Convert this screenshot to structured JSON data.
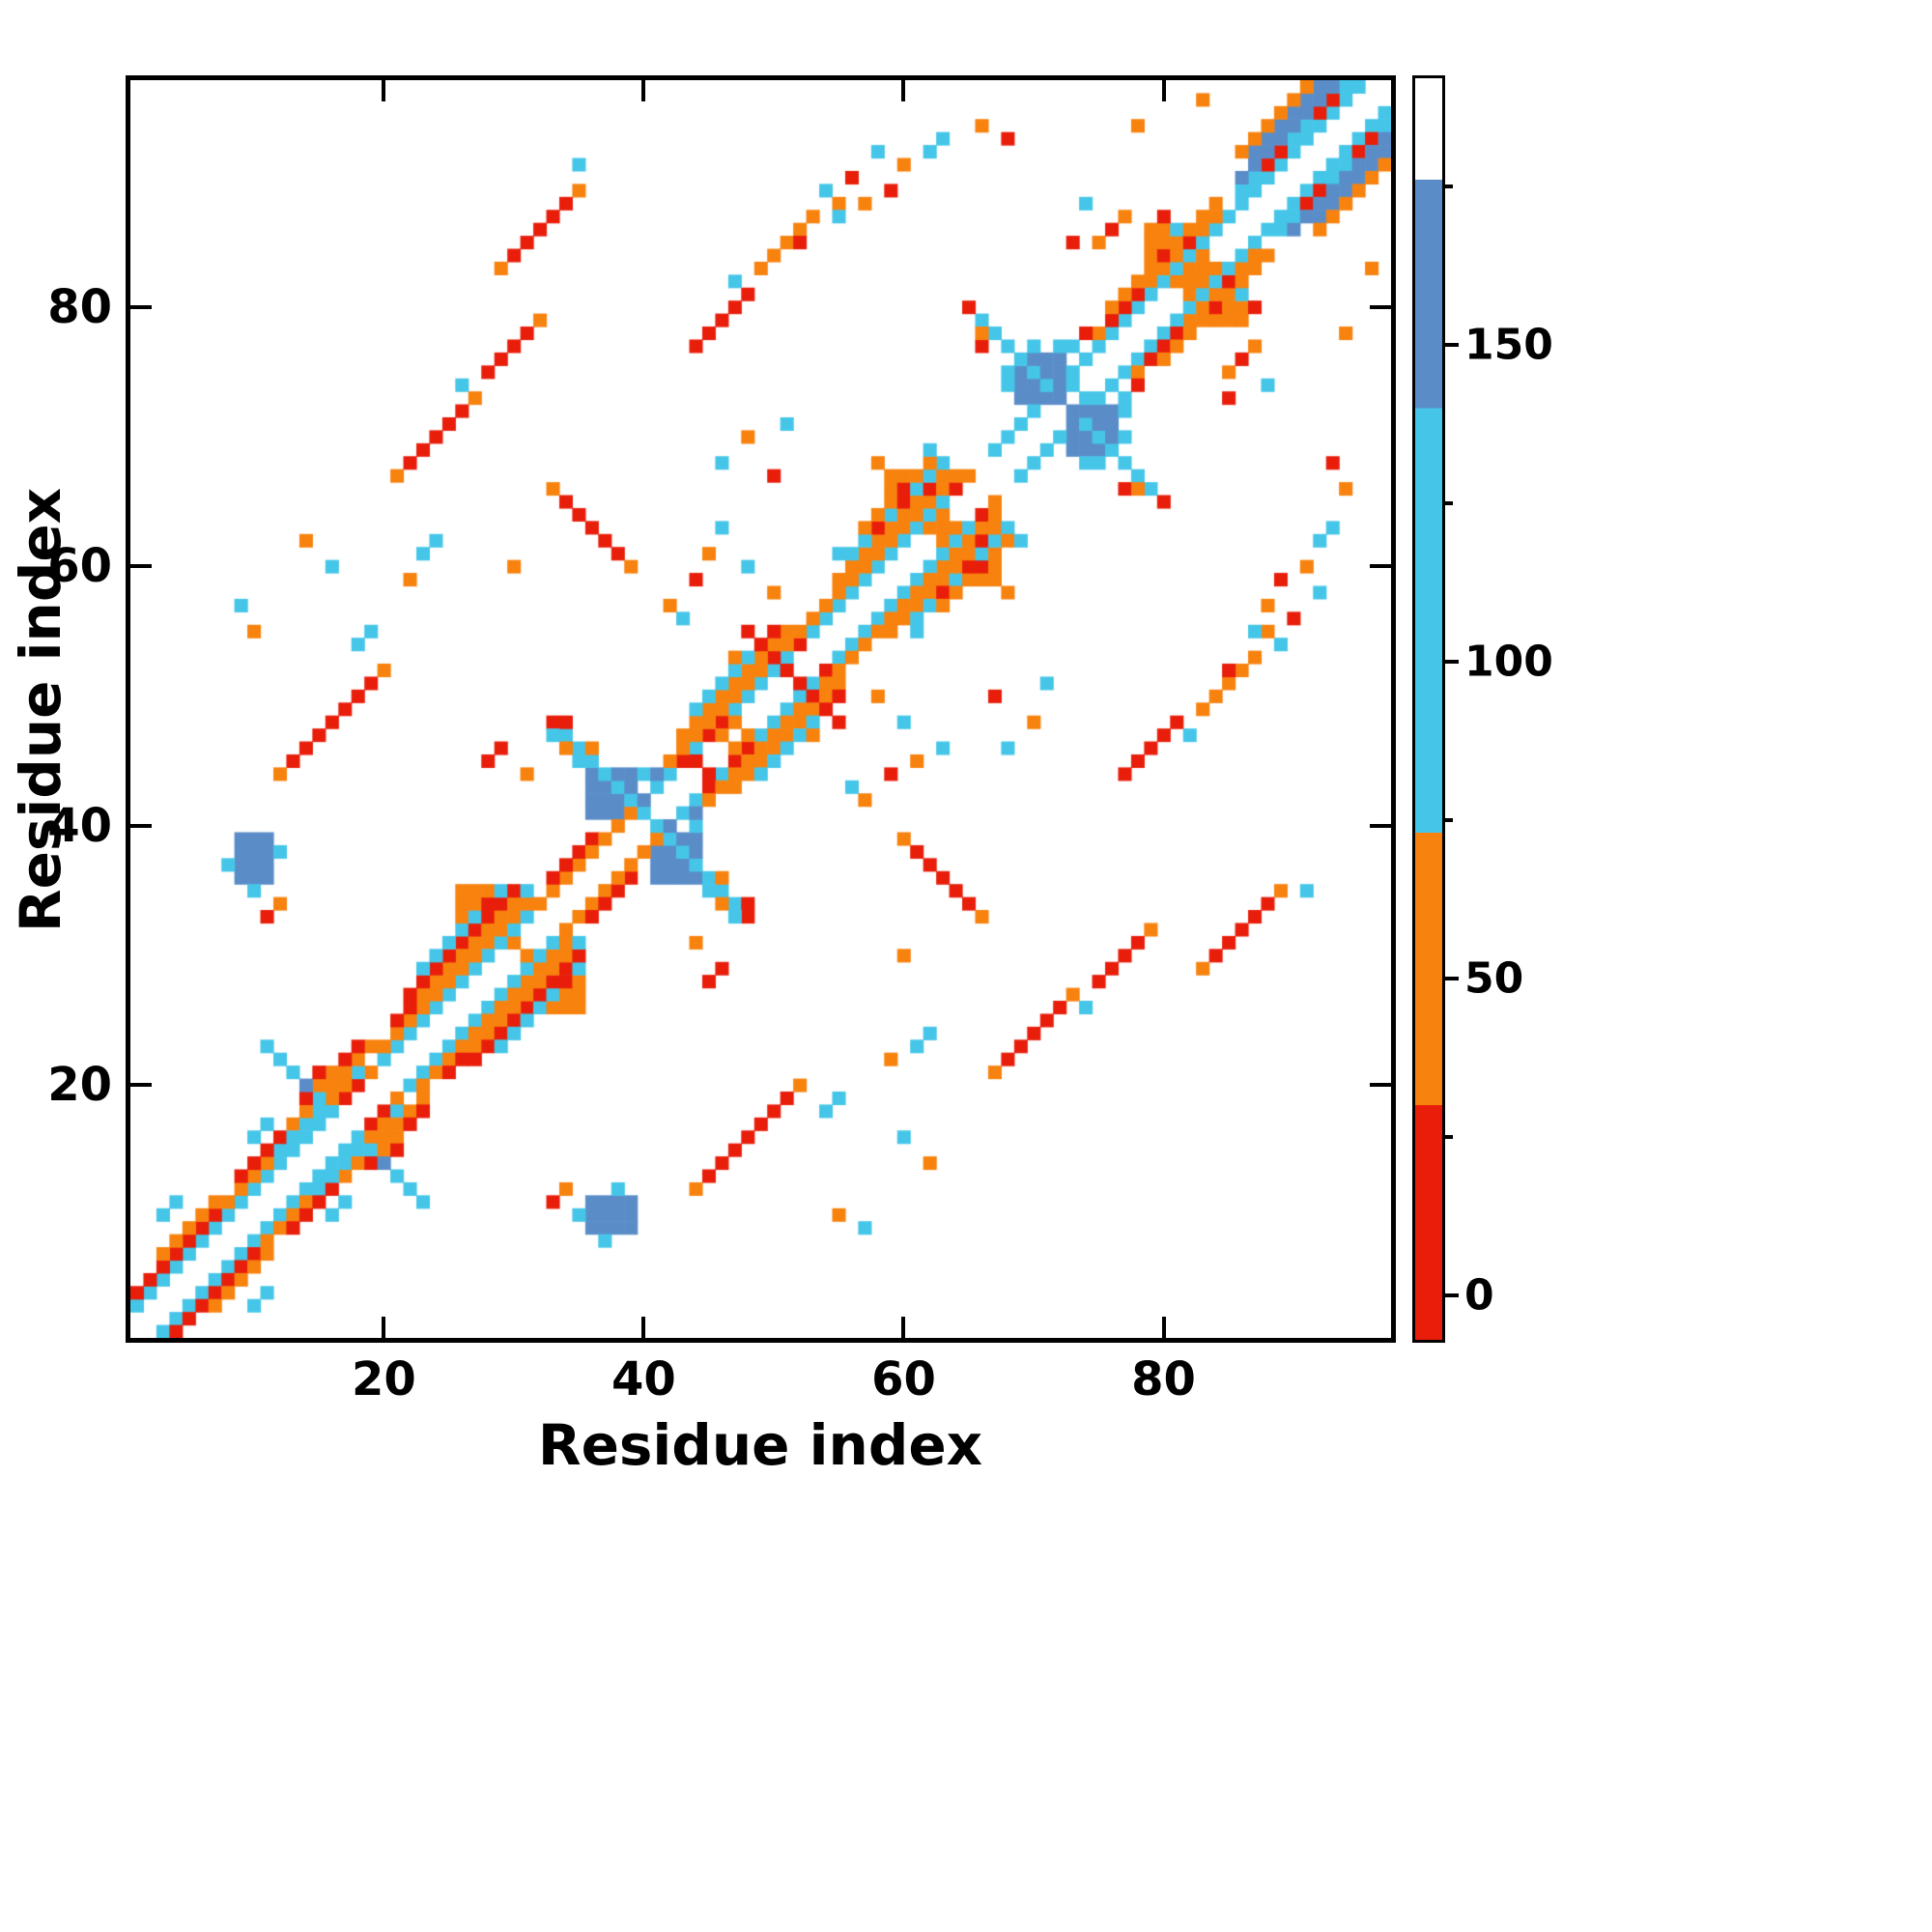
{
  "chart_data": {
    "type": "heatmap",
    "title": "",
    "xlabel": "Residue index",
    "ylabel": "Residue index",
    "x_ticks": [
      20,
      40,
      60,
      80
    ],
    "y_ticks": [
      20,
      40,
      60,
      80
    ],
    "x_range": [
      1,
      97
    ],
    "y_range": [
      1,
      97
    ],
    "n_residues": 97,
    "symmetric": true,
    "grid": false,
    "background": "#ffffff",
    "palette": {
      "r": "#e81e0b",
      "o": "#f8820e",
      "c": "#45c6e8",
      "b": "#5a8dc8",
      "w": "#ffffff"
    },
    "value_bins": {
      "r": 15,
      "o": 50,
      "c": 105,
      "b": 158
    },
    "rects": [
      [
        9,
        11,
        36,
        39,
        "b"
      ],
      [
        26,
        30,
        31,
        35,
        "o"
      ],
      [
        36,
        39,
        41,
        44,
        "b"
      ],
      [
        59,
        63,
        63,
        67,
        "o"
      ],
      [
        69,
        72,
        73,
        76,
        "b"
      ],
      [
        79,
        83,
        82,
        86,
        "o"
      ]
    ],
    "diagonals": [
      [
        1,
        8,
        2,
        "c"
      ],
      [
        1,
        7,
        3,
        "r"
      ],
      [
        3,
        7,
        4,
        "o"
      ],
      [
        8,
        19,
        2,
        "c"
      ],
      [
        8,
        12,
        3,
        "o"
      ],
      [
        9,
        13,
        4,
        "r"
      ],
      [
        12,
        18,
        3,
        "c"
      ],
      [
        13,
        19,
        4,
        "o"
      ],
      [
        14,
        18,
        5,
        "r"
      ],
      [
        20,
        32,
        2,
        "c"
      ],
      [
        20,
        31,
        3,
        "o"
      ],
      [
        21,
        31,
        4,
        "o"
      ],
      [
        22,
        30,
        5,
        "r"
      ],
      [
        23,
        29,
        6,
        "c"
      ],
      [
        32,
        35,
        2,
        "o"
      ],
      [
        33,
        36,
        3,
        "r"
      ],
      [
        35,
        39,
        2,
        "o"
      ],
      [
        41,
        52,
        2,
        "c"
      ],
      [
        42,
        51,
        3,
        "o"
      ],
      [
        43,
        51,
        4,
        "o"
      ],
      [
        44,
        50,
        5,
        "c"
      ],
      [
        53,
        64,
        2,
        "c"
      ],
      [
        54,
        64,
        3,
        "o"
      ],
      [
        55,
        63,
        4,
        "o"
      ],
      [
        56,
        63,
        5,
        "c"
      ],
      [
        57,
        62,
        6,
        "o"
      ],
      [
        67,
        74,
        2,
        "c"
      ],
      [
        74,
        85,
        2,
        "c"
      ],
      [
        75,
        84,
        3,
        "o"
      ],
      [
        76,
        84,
        4,
        "o"
      ],
      [
        85,
        95,
        2,
        "c"
      ],
      [
        86,
        94,
        3,
        "c"
      ],
      [
        86,
        93,
        4,
        "b"
      ],
      [
        87,
        92,
        5,
        "b"
      ],
      [
        87,
        91,
        6,
        "o"
      ],
      [
        13,
        19,
        32,
        "r"
      ],
      [
        22,
        26,
        46,
        "r"
      ],
      [
        28,
        31,
        47,
        "r"
      ],
      [
        30,
        34,
        54,
        "r"
      ],
      [
        44,
        48,
        33,
        "r"
      ],
      [
        49,
        53,
        34,
        "o"
      ],
      [
        66,
        67,
        11,
        "r"
      ]
    ],
    "antidiagonals": [
      [
        13,
        21,
        4,
        "c"
      ],
      [
        34,
        47,
        7,
        "c"
      ],
      [
        48,
        55,
        4,
        "r"
      ],
      [
        66,
        79,
        6,
        "c"
      ],
      [
        34,
        65,
        5,
        "r"
      ]
    ],
    "points": [
      [
        15,
        20,
        "o"
      ],
      [
        16,
        19,
        "o"
      ],
      [
        16,
        21,
        "o"
      ],
      [
        17,
        20,
        "o"
      ],
      [
        15,
        21,
        "r"
      ],
      [
        14,
        20,
        "b"
      ],
      [
        11,
        23,
        "c"
      ],
      [
        12,
        22,
        "c"
      ],
      [
        17,
        19,
        "r"
      ],
      [
        18,
        20,
        "r"
      ],
      [
        19,
        21,
        "o"
      ],
      [
        10,
        16,
        "c"
      ],
      [
        11,
        17,
        "c"
      ],
      [
        3,
        10,
        "c"
      ],
      [
        4,
        11,
        "c"
      ],
      [
        21,
        25,
        "r"
      ],
      [
        22,
        26,
        "r"
      ],
      [
        27,
        32,
        "r"
      ],
      [
        28,
        34,
        "r"
      ],
      [
        30,
        35,
        "r"
      ],
      [
        25,
        31,
        "c"
      ],
      [
        31,
        35,
        "c"
      ],
      [
        35,
        45,
        "c"
      ],
      [
        40,
        44,
        "c"
      ],
      [
        41,
        43,
        "c"
      ],
      [
        34,
        48,
        "r"
      ],
      [
        44,
        45,
        "r"
      ],
      [
        36,
        46,
        "o"
      ],
      [
        33,
        48,
        "r"
      ],
      [
        34,
        46,
        "o"
      ],
      [
        37,
        42,
        "b"
      ],
      [
        38,
        42,
        "b"
      ],
      [
        40,
        42,
        "b"
      ],
      [
        41,
        44,
        "b"
      ],
      [
        42,
        44,
        "c"
      ],
      [
        43,
        45,
        "r"
      ],
      [
        45,
        47,
        "r"
      ],
      [
        46,
        48,
        "r"
      ],
      [
        47,
        48,
        "o"
      ],
      [
        46,
        47,
        "o"
      ],
      [
        47,
        53,
        "o"
      ],
      [
        52,
        55,
        "o"
      ],
      [
        53,
        56,
        "o"
      ],
      [
        50,
        55,
        "r"
      ],
      [
        52,
        54,
        "r"
      ],
      [
        58,
        63,
        "r"
      ],
      [
        60,
        65,
        "r"
      ],
      [
        62,
        66,
        "r"
      ],
      [
        55,
        61,
        "c"
      ],
      [
        63,
        68,
        "c"
      ],
      [
        64,
        66,
        "r"
      ],
      [
        65,
        67,
        "o"
      ],
      [
        68,
        74,
        "c"
      ],
      [
        68,
        75,
        "c"
      ],
      [
        73,
        77,
        "c"
      ],
      [
        72,
        77,
        "c"
      ],
      [
        70,
        77,
        "c"
      ],
      [
        65,
        80,
        "r"
      ],
      [
        66,
        78,
        "o"
      ],
      [
        74,
        78,
        "r"
      ],
      [
        73,
        74,
        "c"
      ],
      [
        72,
        74,
        "b"
      ],
      [
        71,
        73,
        "b"
      ],
      [
        77,
        80,
        "r"
      ],
      [
        78,
        81,
        "r"
      ],
      [
        80,
        84,
        "r"
      ],
      [
        82,
        85,
        "r"
      ],
      [
        81,
        86,
        "c"
      ],
      [
        76,
        79,
        "r"
      ],
      [
        83,
        86,
        "o"
      ],
      [
        80,
        87,
        "r"
      ],
      [
        88,
        91,
        "r"
      ],
      [
        92,
        95,
        "r"
      ],
      [
        89,
        92,
        "r"
      ],
      [
        93,
        96,
        "r"
      ],
      [
        90,
        96,
        "o"
      ],
      [
        91,
        97,
        "o"
      ],
      [
        86,
        92,
        "o"
      ],
      [
        8,
        37,
        "c"
      ],
      [
        12,
        38,
        "c"
      ],
      [
        10,
        35,
        "c"
      ],
      [
        11,
        33,
        "r"
      ],
      [
        12,
        34,
        "o"
      ],
      [
        12,
        44,
        "o"
      ],
      [
        20,
        52,
        "o"
      ],
      [
        18,
        54,
        "c"
      ],
      [
        19,
        55,
        "c"
      ],
      [
        14,
        62,
        "o"
      ],
      [
        16,
        60,
        "c"
      ],
      [
        9,
        57,
        "c"
      ],
      [
        10,
        55,
        "o"
      ],
      [
        23,
        61,
        "c"
      ],
      [
        24,
        62,
        "c"
      ],
      [
        22,
        59,
        "o"
      ],
      [
        21,
        67,
        "o"
      ],
      [
        27,
        73,
        "o"
      ],
      [
        32,
        79,
        "o"
      ],
      [
        26,
        74,
        "c"
      ],
      [
        29,
        83,
        "o"
      ],
      [
        35,
        89,
        "o"
      ],
      [
        35,
        91,
        "c"
      ],
      [
        33,
        66,
        "o"
      ],
      [
        39,
        60,
        "o"
      ],
      [
        30,
        60,
        "o"
      ],
      [
        45,
        61,
        "o"
      ],
      [
        46,
        63,
        "c"
      ],
      [
        44,
        59,
        "r"
      ],
      [
        48,
        60,
        "c"
      ],
      [
        50,
        58,
        "o"
      ],
      [
        52,
        85,
        "r"
      ],
      [
        47,
        82,
        "c"
      ],
      [
        54,
        89,
        "c"
      ],
      [
        55,
        88,
        "o"
      ],
      [
        56,
        90,
        "r"
      ],
      [
        57,
        88,
        "o"
      ],
      [
        58,
        92,
        "c"
      ],
      [
        59,
        89,
        "r"
      ],
      [
        60,
        91,
        "o"
      ],
      [
        55,
        87,
        "c"
      ],
      [
        62,
        92,
        "c"
      ],
      [
        63,
        93,
        "c"
      ],
      [
        66,
        94,
        "o"
      ],
      [
        68,
        93,
        "r"
      ],
      [
        58,
        68,
        "o"
      ],
      [
        60,
        66,
        "r"
      ],
      [
        62,
        69,
        "c"
      ],
      [
        46,
        68,
        "c"
      ],
      [
        48,
        70,
        "o"
      ],
      [
        50,
        67,
        "r"
      ],
      [
        51,
        71,
        "c"
      ],
      [
        75,
        85,
        "o"
      ],
      [
        76,
        86,
        "r"
      ],
      [
        77,
        87,
        "o"
      ],
      [
        73,
        85,
        "r"
      ],
      [
        74,
        88,
        "c"
      ],
      [
        28,
        45,
        "r"
      ],
      [
        29,
        46,
        "r"
      ],
      [
        31,
        44,
        "o"
      ],
      [
        33,
        47,
        "c"
      ],
      [
        42,
        57,
        "o"
      ],
      [
        43,
        56,
        "c"
      ],
      [
        78,
        94,
        "o"
      ],
      [
        83,
        96,
        "o"
      ]
    ]
  },
  "colorbar": {
    "range": [
      -7,
      192
    ],
    "ticks": [
      0,
      50,
      100,
      150
    ],
    "tick_labels": [
      "0",
      "50",
      "100",
      "150"
    ],
    "minor_ticks": [
      25,
      75,
      125,
      175
    ],
    "bands": [
      {
        "from": -7,
        "to": 30,
        "color": "#e81e0b"
      },
      {
        "from": 30,
        "to": 73,
        "color": "#f8820e"
      },
      {
        "from": 73,
        "to": 140,
        "color": "#45c6e8"
      },
      {
        "from": 140,
        "to": 176,
        "color": "#5a8dc8"
      },
      {
        "from": 176,
        "to": 192,
        "color": "#ffffff"
      }
    ]
  }
}
